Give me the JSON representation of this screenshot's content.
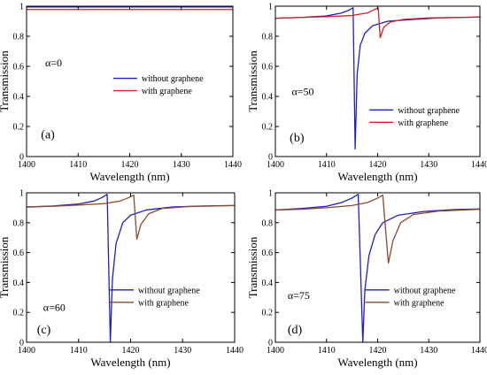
{
  "chart_data": [
    {
      "type": "line",
      "panel_label": "(a)",
      "annotation": "α=0",
      "xlabel": "Wavelength (nm)",
      "ylabel": "Transmission",
      "xlim": [
        1400,
        1440
      ],
      "ylim": [
        0,
        1
      ],
      "xticks": [
        "1400",
        "1410",
        "1420",
        "1430",
        "1440"
      ],
      "yticks": [
        "0",
        "0.2",
        "0.4",
        "0.6",
        "0.8",
        "1"
      ],
      "legend_position": "center-right",
      "series": [
        {
          "name": "without graphene",
          "color": "#1f1fbf",
          "x": [
            1400,
            1440
          ],
          "y": [
            0.995,
            0.995
          ]
        },
        {
          "name": "with graphene",
          "color": "#d42020",
          "x": [
            1400,
            1440
          ],
          "y": [
            0.978,
            0.978
          ]
        }
      ]
    },
    {
      "type": "line",
      "panel_label": "(b)",
      "annotation": "α=50",
      "xlabel": "Wavelength (nm)",
      "ylabel": "Transmission",
      "xlim": [
        1400,
        1440
      ],
      "ylim": [
        0,
        1
      ],
      "xticks": [
        "1400",
        "1410",
        "1420",
        "1430",
        "1440"
      ],
      "yticks": [
        "0",
        "0.2",
        "0.4",
        "0.6",
        "0.8",
        "1"
      ],
      "legend_position": "center-right",
      "series": [
        {
          "name": "without graphene",
          "color": "#1f1fbf",
          "x": [
            1400,
            1405,
            1410,
            1413,
            1414.5,
            1415.2,
            1415.6,
            1416,
            1416.6,
            1417.5,
            1419,
            1422,
            1426,
            1432,
            1440
          ],
          "y": [
            0.92,
            0.925,
            0.935,
            0.955,
            0.975,
            0.99,
            0.05,
            0.55,
            0.74,
            0.82,
            0.87,
            0.9,
            0.91,
            0.922,
            0.928
          ]
        },
        {
          "name": "with graphene",
          "color": "#d42020",
          "x": [
            1400,
            1405,
            1410,
            1415,
            1418,
            1419.5,
            1420.1,
            1420.5,
            1421.2,
            1422.5,
            1425,
            1430,
            1440
          ],
          "y": [
            0.92,
            0.925,
            0.93,
            0.938,
            0.955,
            0.98,
            0.99,
            0.79,
            0.86,
            0.895,
            0.912,
            0.922,
            0.928
          ]
        }
      ]
    },
    {
      "type": "line",
      "panel_label": "(c)",
      "annotation": "α=60",
      "xlabel": "Wavelength (nm)",
      "ylabel": "Transmission",
      "xlim": [
        1400,
        1440
      ],
      "ylim": [
        0,
        1
      ],
      "xticks": [
        "1400",
        "1410",
        "1420",
        "1430",
        "1440"
      ],
      "yticks": [
        "0",
        "0.2",
        "0.4",
        "0.6",
        "0.8",
        "1"
      ],
      "legend_position": "center-right",
      "series": [
        {
          "name": "without graphene",
          "color": "#1f1fbf",
          "x": [
            1400,
            1405,
            1410,
            1413,
            1414.6,
            1415.5,
            1416.1,
            1416.5,
            1417.2,
            1418.5,
            1420,
            1423,
            1428,
            1434,
            1440
          ],
          "y": [
            0.905,
            0.912,
            0.925,
            0.945,
            0.97,
            0.99,
            0.0,
            0.42,
            0.66,
            0.8,
            0.85,
            0.885,
            0.905,
            0.912,
            0.915
          ]
        },
        {
          "name": "with graphene",
          "color": "#8b4a2b",
          "x": [
            1400,
            1405,
            1410,
            1415,
            1418,
            1419.8,
            1420.6,
            1421.2,
            1422,
            1423.5,
            1426,
            1431,
            1440
          ],
          "y": [
            0.905,
            0.91,
            0.918,
            0.928,
            0.945,
            0.97,
            0.985,
            0.69,
            0.79,
            0.86,
            0.895,
            0.908,
            0.915
          ]
        }
      ]
    },
    {
      "type": "line",
      "panel_label": "(d)",
      "annotation": "α=75",
      "xlabel": "Wavelength (nm)",
      "ylabel": "Transmission",
      "xlim": [
        1400,
        1440
      ],
      "ylim": [
        0,
        1
      ],
      "xticks": [
        "1400",
        "1410",
        "1420",
        "1430",
        "1440"
      ],
      "yticks": [
        "0",
        "0.2",
        "0.4",
        "0.6",
        "0.8",
        "1"
      ],
      "legend_position": "center-right",
      "series": [
        {
          "name": "without graphene",
          "color": "#1f1fbf",
          "x": [
            1400,
            1405,
            1410,
            1413,
            1415,
            1416.2,
            1417.1,
            1417.5,
            1418.3,
            1419.5,
            1421,
            1424,
            1429,
            1435,
            1440
          ],
          "y": [
            0.885,
            0.895,
            0.91,
            0.935,
            0.965,
            0.99,
            0.0,
            0.35,
            0.58,
            0.72,
            0.8,
            0.85,
            0.875,
            0.888,
            0.892
          ]
        },
        {
          "name": "with graphene",
          "color": "#8b4a2b",
          "x": [
            1400,
            1405,
            1410,
            1415,
            1418,
            1420,
            1421,
            1422.1,
            1423,
            1424.5,
            1427,
            1432,
            1440
          ],
          "y": [
            0.885,
            0.89,
            0.9,
            0.915,
            0.935,
            0.965,
            0.985,
            0.53,
            0.68,
            0.8,
            0.855,
            0.878,
            0.89
          ]
        }
      ]
    }
  ]
}
